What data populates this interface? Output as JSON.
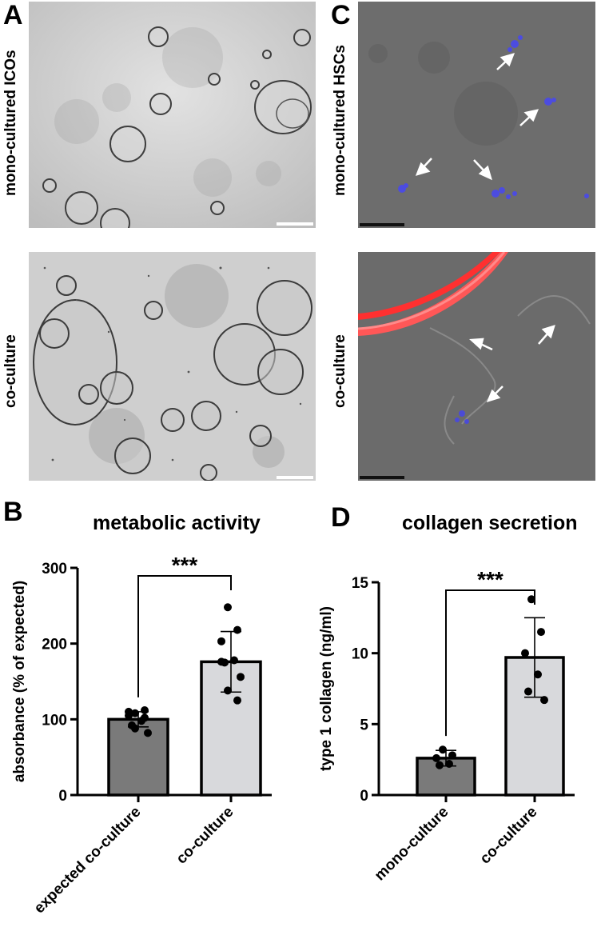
{
  "panels": {
    "A": {
      "letter": "A",
      "row_top_label": "mono-cultured ICOs",
      "row_bottom_label": "co-culture"
    },
    "B": {
      "letter": "B"
    },
    "C": {
      "letter": "C",
      "row_top_label": "mono-cultured HSCs",
      "row_bottom_label": "co-culture"
    },
    "D": {
      "letter": "D"
    }
  },
  "colors": {
    "bar_dark": "#7a7a7a",
    "bar_light": "#d8d9dc",
    "micro_bright": "#c8c8c8",
    "micro_fluor": "#6c6c6c",
    "red_fiber": "#ff3b3b",
    "nuclei_blue": "#4b4bd6"
  },
  "chart_data": [
    {
      "type": "bar",
      "title": "metabolic activity",
      "ylabel": "absorbance (% of expected)",
      "categories": [
        "expected co-culture",
        "co-culture"
      ],
      "values": [
        100,
        176
      ],
      "sd": [
        10,
        40
      ],
      "ylim": [
        0,
        300
      ],
      "yticks": [
        0,
        100,
        200,
        300
      ],
      "points": [
        [
          108,
          112,
          105,
          98,
          92,
          82,
          88,
          102,
          110
        ],
        [
          248,
          218,
          203,
          178,
          175,
          156,
          138,
          125,
          176
        ]
      ],
      "significance": "***",
      "bar_colors": [
        "#7a7a7a",
        "#d8d9dc"
      ]
    },
    {
      "type": "bar",
      "title": "collagen secretion",
      "ylabel": "type 1 collagen (ng/ml)",
      "categories": [
        "mono-culture",
        "co-culture"
      ],
      "values": [
        2.6,
        9.7
      ],
      "sd": [
        0.55,
        2.8
      ],
      "ylim": [
        0,
        15
      ],
      "yticks": [
        0,
        5,
        10,
        15
      ],
      "points": [
        [
          3.2,
          2.8,
          2.6,
          2.2,
          2.1
        ],
        [
          13.8,
          11.5,
          10.0,
          8.5,
          7.3,
          6.7
        ]
      ],
      "significance": "***",
      "bar_colors": [
        "#7a7a7a",
        "#d8d9dc"
      ]
    }
  ]
}
